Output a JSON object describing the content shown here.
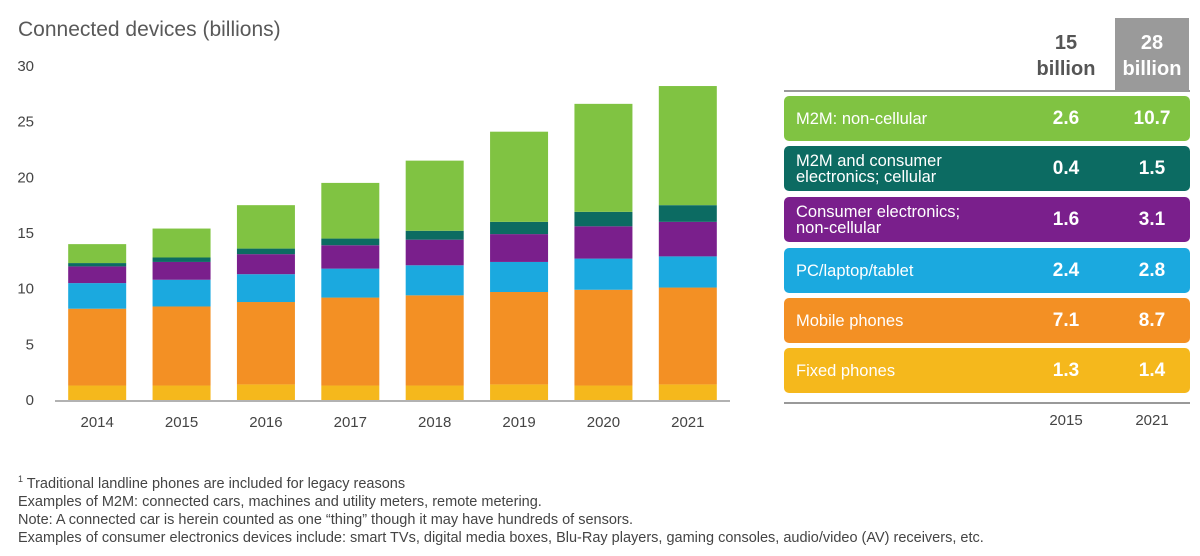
{
  "chart_data": {
    "type": "bar",
    "stacked": true,
    "title": "Connected devices (billions)",
    "categories": [
      "2014",
      "2015",
      "2016",
      "2017",
      "2018",
      "2019",
      "2020",
      "2021"
    ],
    "ylim": [
      0,
      30
    ],
    "yticks": [
      "0",
      "5",
      "10",
      "15",
      "20",
      "25",
      "30"
    ],
    "grid": false,
    "series": [
      {
        "name": "Fixed phones",
        "color": "#f5b81c",
        "values": [
          1.3,
          1.3,
          1.4,
          1.3,
          1.3,
          1.4,
          1.3,
          1.4
        ]
      },
      {
        "name": "Mobile phones",
        "color": "#f39024",
        "values": [
          6.9,
          7.1,
          7.4,
          7.9,
          8.1,
          8.3,
          8.6,
          8.7
        ]
      },
      {
        "name": "PC/laptop/tablet",
        "color": "#1ba9df",
        "values": [
          2.3,
          2.4,
          2.5,
          2.6,
          2.7,
          2.7,
          2.8,
          2.8
        ]
      },
      {
        "name": "Consumer electronics; non-cellular",
        "color": "#7a1f8c",
        "values": [
          1.5,
          1.6,
          1.8,
          2.1,
          2.3,
          2.5,
          2.9,
          3.1
        ]
      },
      {
        "name": "M2M and consumer electronics; cellular",
        "color": "#0c6b62",
        "values": [
          0.3,
          0.4,
          0.5,
          0.6,
          0.8,
          1.1,
          1.3,
          1.5
        ]
      },
      {
        "name": "M2M: non-cellular",
        "color": "#80c342",
        "values": [
          1.7,
          2.6,
          3.9,
          5.0,
          6.3,
          8.1,
          9.7,
          10.7
        ]
      }
    ]
  },
  "panel": {
    "head_2015_line1": "15",
    "head_2015_line2": "billion",
    "head_2021_line1": "28",
    "head_2021_line2": "billion",
    "year_2015": "2015",
    "year_2021": "2021",
    "rows": [
      {
        "label1": "M2M: non-cellular",
        "label2": "",
        "v2015": "2.6",
        "v2021": "10.7",
        "color": "#80c342"
      },
      {
        "label1": "M2M and consumer",
        "label2": "electronics; cellular",
        "v2015": "0.4",
        "v2021": "1.5",
        "color": "#0c6b62"
      },
      {
        "label1": "Consumer electronics;",
        "label2": "non-cellular",
        "v2015": "1.6",
        "v2021": "3.1",
        "color": "#7a1f8c"
      },
      {
        "label1": "PC/laptop/tablet",
        "label2": "",
        "v2015": "2.4",
        "v2021": "2.8",
        "color": "#1ba9df"
      },
      {
        "label1": "Mobile phones",
        "label2": "",
        "v2015": "7.1",
        "v2021": "8.7",
        "color": "#f39024"
      },
      {
        "label1": "Fixed phones",
        "label2": "",
        "v2015": "1.3",
        "v2021": "1.4",
        "color": "#f5b81c"
      }
    ]
  },
  "notes": {
    "sup": "1",
    "line1": " Traditional landline phones are included for legacy reasons",
    "line2": "Examples of M2M: connected cars, machines and utility meters, remote metering.",
    "line3": "Note: A connected car is herein counted as one “thing” though it may have hundreds of sensors.",
    "line4": "Examples of consumer electronics devices include: smart TVs, digital media boxes, Blu-Ray players, gaming consoles, audio/video (AV) receivers, etc."
  }
}
